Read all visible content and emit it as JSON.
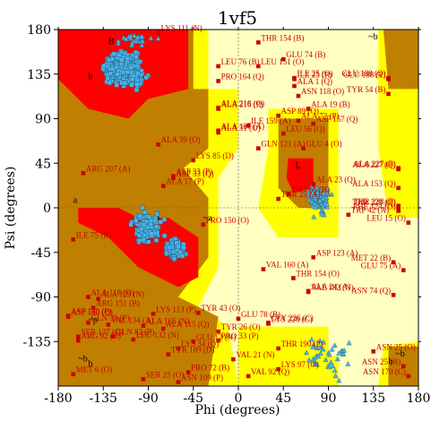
{
  "chart_data": {
    "type": "scatter",
    "title": "1vf5",
    "xlabel": "Phi (degrees)",
    "ylabel": "Psi (degrees)",
    "xlim": [
      -180,
      180
    ],
    "ylim": [
      -180,
      180
    ],
    "xticks": [
      -180,
      -135,
      -90,
      -45,
      0,
      45,
      90,
      135,
      180
    ],
    "yticks": [
      -135,
      -90,
      -45,
      0,
      45,
      90,
      135,
      180
    ],
    "grid": false,
    "colors": {
      "core": "#ff0000",
      "allowed": "#c07f00",
      "generous": "#ffff00",
      "disallowed": "#ffffc0",
      "general_point": "#4cb4e6",
      "glycine_point": "#4cb4e6",
      "outlier_point": "#cc0000",
      "label": "#cc0000"
    },
    "region_letters": [
      {
        "text": "b",
        "x": -150,
        "y": 130
      },
      {
        "text": "B",
        "x": -130,
        "y": 165
      },
      {
        "text": "A",
        "x": -84,
        "y": -13
      },
      {
        "text": "a",
        "x": -165,
        "y": 5
      },
      {
        "text": "L",
        "x": 57,
        "y": 40
      },
      {
        "text": "~a",
        "x": -35,
        "y": -13
      },
      {
        "text": "~b",
        "x": 130,
        "y": 170
      },
      {
        "text": "~p",
        "x": -150,
        "y": -116
      },
      {
        "text": "~b",
        "x": -160,
        "y": -155
      },
      {
        "text": "b",
        "x": -150,
        "y": -160
      },
      {
        "text": "~b",
        "x": 157,
        "y": -150
      },
      {
        "text": "b",
        "x": 150,
        "y": -158
      }
    ],
    "labeled_residues": [
      {
        "label": "LYS 111 (N)",
        "x": -80,
        "y": 177
      },
      {
        "label": "THR 154 (B)",
        "x": 20,
        "y": 167
      },
      {
        "label": "GLU 74 (B)",
        "x": 45,
        "y": 150
      },
      {
        "label": "LEU 76 (B)",
        "x": -20,
        "y": 143
      },
      {
        "label": "LEU 151 (O)",
        "x": 20,
        "y": 143
      },
      {
        "label": "PRO 164 (Q)",
        "x": -20,
        "y": 128
      },
      {
        "label": "ILE 25 (P)",
        "x": 56,
        "y": 130
      },
      {
        "label": "ILE 25 (Q)",
        "x": 56,
        "y": 131
      },
      {
        "label": "GLU 188 (P)",
        "x": 150,
        "y": 130
      },
      {
        "label": "GLU 188 (Q)",
        "x": 150,
        "y": 131
      },
      {
        "label": "ALA 1 (Q)",
        "x": 56,
        "y": 123
      },
      {
        "label": "ASN 118 (O)",
        "x": 60,
        "y": 113
      },
      {
        "label": "TYR 54 (B)",
        "x": 150,
        "y": 115
      },
      {
        "label": "ALA 216 (P)",
        "x": -20,
        "y": 100
      },
      {
        "label": "ALA 216 (Q)",
        "x": -20,
        "y": 101
      },
      {
        "label": "ALA 19 (B)",
        "x": 70,
        "y": 100
      },
      {
        "label": "ASP 89 (O)",
        "x": 40,
        "y": 93
      },
      {
        "label": "ILE 159 (A)",
        "x": 10,
        "y": 83
      },
      {
        "label": "ALA 187 (A)",
        "x": -20,
        "y": 78
      },
      {
        "label": "ALA 31 (O)",
        "x": -20,
        "y": 76
      },
      {
        "label": "ASP 157 (Q)",
        "x": 75,
        "y": 85
      },
      {
        "label": "LEU 56 (Q)",
        "x": 45,
        "y": 75
      },
      {
        "label": "ALA 72 (P)",
        "x": 60,
        "y": 88
      },
      {
        "label": "GLN 121 (A)",
        "x": 20,
        "y": 60
      },
      {
        "label": "GLU 4 (O)",
        "x": 65,
        "y": 60
      },
      {
        "label": "ALA 39 (O)",
        "x": -80,
        "y": 64
      },
      {
        "label": "LYS 85 (D)",
        "x": -45,
        "y": 48
      },
      {
        "label": "ARG 207 (A)",
        "x": -155,
        "y": 35
      },
      {
        "label": "ASP 33 (P)",
        "x": -65,
        "y": 32
      },
      {
        "label": "ASP 33 (Q)",
        "x": -65,
        "y": 30
      },
      {
        "label": "ALA 17 (P)",
        "x": -75,
        "y": 22
      },
      {
        "label": "PRO 65 (B)",
        "x": 50,
        "y": 14
      },
      {
        "label": "THR 25 (A)",
        "x": 40,
        "y": 9
      },
      {
        "label": "ALA 23 (Q)",
        "x": 75,
        "y": 24
      },
      {
        "label": "ALA 227 (P)",
        "x": 160,
        "y": 40
      },
      {
        "label": "ALA 227 (Q)",
        "x": 160,
        "y": 39
      },
      {
        "label": "ALA 153 (Q)",
        "x": 160,
        "y": 20
      },
      {
        "label": "THR 228 (P)",
        "x": 160,
        "y": 2
      },
      {
        "label": "THR 228 (Q)",
        "x": 160,
        "y": 1
      },
      {
        "label": "PHE 124 (O)",
        "x": 160,
        "y": -3
      },
      {
        "label": "TRP 42 (A)",
        "x": 110,
        "y": -7
      },
      {
        "label": "LEU 15 (O)",
        "x": 170,
        "y": -15
      },
      {
        "label": "PRO 150 (O)",
        "x": -35,
        "y": -17
      },
      {
        "label": "ILE 75 (B)",
        "x": -165,
        "y": -32
      },
      {
        "label": "VAL 160 (A)",
        "x": 25,
        "y": -62
      },
      {
        "label": "ASP 123 (A)",
        "x": 75,
        "y": -50
      },
      {
        "label": "THR 154 (O)",
        "x": 55,
        "y": -71
      },
      {
        "label": "VAL 182 (N)",
        "x": 70,
        "y": -85
      },
      {
        "label": "ALA 24 (A)",
        "x": 70,
        "y": -84
      },
      {
        "label": "MET 22 (B)",
        "x": 155,
        "y": -55
      },
      {
        "label": "GLU 75 (A)",
        "x": 165,
        "y": -63
      },
      {
        "label": "ASN 74 (Q)",
        "x": 155,
        "y": -88
      },
      {
        "label": "ALA 118 (O)",
        "x": -150,
        "y": -90
      },
      {
        "label": "ALA 129 (N)",
        "x": -140,
        "y": -92
      },
      {
        "label": "ARG 151 (B)",
        "x": -145,
        "y": -101
      },
      {
        "label": "ASP 180 (P)",
        "x": -170,
        "y": -109
      },
      {
        "label": "ASP 180 (Q)",
        "x": -170,
        "y": -110
      },
      {
        "label": "LYS 113 (P)",
        "x": -85,
        "y": -107
      },
      {
        "label": "TYR 43 (O)",
        "x": -40,
        "y": -106
      },
      {
        "label": "GLU 78 (B)",
        "x": 0,
        "y": -112
      },
      {
        "label": "GLY 226 (C)",
        "x": 30,
        "y": -116
      },
      {
        "label": "LYS 226 (C)",
        "x": 30,
        "y": -117
      },
      {
        "label": "GLN 39 (P)",
        "x": -150,
        "y": -116
      },
      {
        "label": "VAL 134 (A)",
        "x": -130,
        "y": -118
      },
      {
        "label": "ALA 165 (N)",
        "x": -95,
        "y": -119
      },
      {
        "label": "ALA 115 (Q)",
        "x": -75,
        "y": -122
      },
      {
        "label": "TYR 26 (O)",
        "x": -20,
        "y": -125
      },
      {
        "label": "SER 137 (Q)",
        "x": -160,
        "y": -130
      },
      {
        "label": "ARG 92 (B)",
        "x": -160,
        "y": -134
      },
      {
        "label": "GLN 82 (P)",
        "x": -125,
        "y": -130
      },
      {
        "label": "LEU 132 (N)",
        "x": -105,
        "y": -133
      },
      {
        "label": "PRO 33 (P)",
        "x": -20,
        "y": -134
      },
      {
        "label": "LYS 34 (Q)",
        "x": -60,
        "y": -142
      },
      {
        "label": "GLU 12 (N)",
        "x": -45,
        "y": -135
      },
      {
        "label": "THR 190 (P)",
        "x": 40,
        "y": -142
      },
      {
        "label": "ASN 25 (O)",
        "x": 135,
        "y": -145
      },
      {
        "label": "TYR 189 (D)",
        "x": -70,
        "y": -148
      },
      {
        "label": "VAL 21 (N)",
        "x": -5,
        "y": -153
      },
      {
        "label": "LYS 97 (O)",
        "x": 40,
        "y": -163
      },
      {
        "label": "ASN 25 (B)",
        "x": 165,
        "y": -160
      },
      {
        "label": "MET 6 (O)",
        "x": -165,
        "y": -168
      },
      {
        "label": "PRO 72 (B)",
        "x": -50,
        "y": -166
      },
      {
        "label": "VAL 92 (Q)",
        "x": 10,
        "y": -170
      },
      {
        "label": "ASN 170 (C)",
        "x": 170,
        "y": -170
      },
      {
        "label": "SER 25 (O)",
        "x": -95,
        "y": -173
      },
      {
        "label": "ASN 109 (P)",
        "x": -60,
        "y": -176
      }
    ]
  }
}
